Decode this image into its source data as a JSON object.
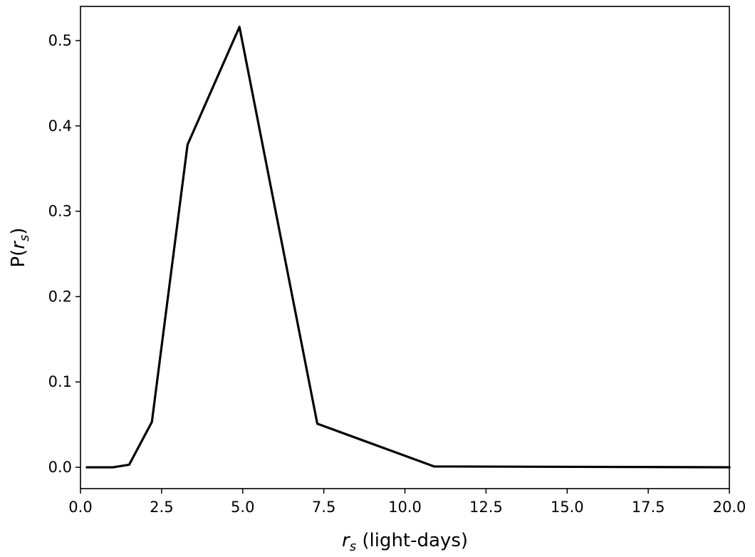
{
  "chart_data": {
    "type": "line",
    "title": "",
    "xlabel": {
      "symbol": "r",
      "subscript": "s",
      "rest": " (light-days)"
    },
    "ylabel": {
      "prefix": "P(",
      "symbol": "r",
      "subscript": "s",
      "suffix": ")"
    },
    "xlim": [
      0.0,
      20.0
    ],
    "ylim": [
      -0.025,
      0.54
    ],
    "xticks": [
      0.0,
      2.5,
      5.0,
      7.5,
      10.0,
      12.5,
      15.0,
      17.5,
      20.0
    ],
    "xtick_labels": [
      "0.0",
      "2.5",
      "5.0",
      "7.5",
      "10.0",
      "12.5",
      "15.0",
      "17.5",
      "20.0"
    ],
    "yticks": [
      0.0,
      0.1,
      0.2,
      0.3,
      0.4,
      0.5
    ],
    "ytick_labels": [
      "0.0",
      "0.1",
      "0.2",
      "0.3",
      "0.4",
      "0.5"
    ],
    "grid": false,
    "line_color": "#000000",
    "series": [
      {
        "x": [
          0.2,
          1.0,
          1.5,
          2.2,
          3.3,
          4.9,
          7.3,
          10.9,
          20.0
        ],
        "y": [
          0.0,
          0.0,
          0.003,
          0.053,
          0.378,
          0.516,
          0.051,
          0.001,
          0.0
        ]
      }
    ]
  }
}
